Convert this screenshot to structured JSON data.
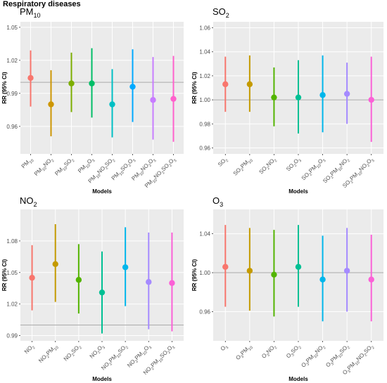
{
  "figure_title": "Respiratory diseases",
  "chart_data": [
    {
      "type": "errorbar",
      "title": "PM10",
      "title_sub": "10",
      "xlabel": "Models",
      "ylabel": "RR (95% CI)",
      "ylim": [
        0.935,
        1.055
      ],
      "yticks": [
        "0.96",
        "0.99",
        "1.02",
        "1.05"
      ],
      "reference_line": 1.0,
      "categories": [
        {
          "base": "PM",
          "sub": "10",
          "rest": ""
        },
        {
          "base": "PM",
          "sub": "10",
          "rest": "NO",
          "sub2": "2"
        },
        {
          "base": "PM",
          "sub": "10",
          "rest": "SO",
          "sub2": "2"
        },
        {
          "base": "PM",
          "sub": "10",
          "rest": "O",
          "sub2": "3"
        },
        {
          "base": "PM",
          "sub": "10",
          "rest": "NO",
          "sub2": "2",
          "rest2": "SO",
          "sub3": "2"
        },
        {
          "base": "PM",
          "sub": "10",
          "rest": "SO",
          "sub2": "2",
          "rest2": "O",
          "sub3": "3"
        },
        {
          "base": "PM",
          "sub": "10",
          "rest": "NO",
          "sub2": "2",
          "rest2": "O",
          "sub3": "3"
        },
        {
          "base": "PM",
          "sub": "10",
          "rest": "NO",
          "sub2": "2",
          "rest2": "SO",
          "sub3": "2",
          "rest3": "O",
          "sub4": "3"
        }
      ],
      "points": [
        {
          "rr": 1.004,
          "lower": 0.978,
          "upper": 1.029
        },
        {
          "rr": 0.98,
          "lower": 0.951,
          "upper": 1.011
        },
        {
          "rr": 0.999,
          "lower": 0.973,
          "upper": 1.027
        },
        {
          "rr": 0.999,
          "lower": 0.968,
          "upper": 1.031
        },
        {
          "rr": 0.98,
          "lower": 0.95,
          "upper": 1.012
        },
        {
          "rr": 0.996,
          "lower": 0.964,
          "upper": 1.03
        },
        {
          "rr": 0.984,
          "lower": 0.948,
          "upper": 1.023
        },
        {
          "rr": 0.985,
          "lower": 0.946,
          "upper": 1.024
        }
      ]
    },
    {
      "type": "errorbar",
      "title": "SO2",
      "xlabel": "Models",
      "ylabel": "RR (95% CI)",
      "ylim": [
        0.955,
        1.065
      ],
      "yticks": [
        "0.96",
        "0.98",
        "1.00",
        "1.02",
        "1.04",
        "1.06"
      ],
      "reference_line": 1.0,
      "categories": [
        {
          "base": "SO",
          "sub": "2",
          "rest": ""
        },
        {
          "base": "SO",
          "sub": "2",
          "rest": "PM",
          "sub2": "10"
        },
        {
          "base": "SO",
          "sub": "2",
          "rest": "NO",
          "sub2": "2"
        },
        {
          "base": "SO",
          "sub": "2",
          "rest": "O",
          "sub2": "3"
        },
        {
          "base": "SO",
          "sub": "2",
          "rest": "PM",
          "sub2": "10",
          "rest2": "O",
          "sub3": "3"
        },
        {
          "base": "SO",
          "sub": "2",
          "rest": "PM",
          "sub2": "10",
          "rest2": "NO",
          "sub3": "2"
        },
        {
          "base": "SO",
          "sub": "2",
          "rest": "PM",
          "sub2": "10",
          "rest2": "NO",
          "sub3": "2",
          "rest3": "O",
          "sub4": "3"
        }
      ],
      "points": [
        {
          "rr": 1.013,
          "lower": 0.99,
          "upper": 1.036
        },
        {
          "rr": 1.013,
          "lower": 0.99,
          "upper": 1.037
        },
        {
          "rr": 1.002,
          "lower": 0.978,
          "upper": 1.027
        },
        {
          "rr": 1.002,
          "lower": 0.972,
          "upper": 1.033
        },
        {
          "rr": 1.004,
          "lower": 0.973,
          "upper": 1.037
        },
        {
          "rr": 1.005,
          "lower": 0.98,
          "upper": 1.031
        },
        {
          "rr": 1.0,
          "lower": 0.965,
          "upper": 1.036
        }
      ]
    },
    {
      "type": "errorbar",
      "title": "NO2",
      "xlabel": "Models",
      "ylabel": "RR (95% CI)",
      "ylim": [
        0.985,
        1.11
      ],
      "yticks": [
        "0.99",
        "1.02",
        "1.05",
        "1.08"
      ],
      "reference_line": 1.0,
      "categories": [
        {
          "base": "NO",
          "sub": "2",
          "rest": ""
        },
        {
          "base": "NO",
          "sub": "2",
          "rest": "PM",
          "sub2": "10"
        },
        {
          "base": "NO",
          "sub": "2",
          "rest": "SO",
          "sub2": "2"
        },
        {
          "base": "NO",
          "sub": "2",
          "rest": "O",
          "sub2": "3"
        },
        {
          "base": "NO",
          "sub": "2",
          "rest": "PM",
          "sub2": "10",
          "rest2": "SO",
          "sub3": "2"
        },
        {
          "base": "NO",
          "sub": "2",
          "rest": "PM",
          "sub2": "10",
          "rest2": "O",
          "sub3": "3"
        },
        {
          "base": "NO",
          "sub": "2",
          "rest": "PM",
          "sub2": "10",
          "rest2": "SO",
          "sub3": "2",
          "rest3": "O",
          "sub4": "3"
        }
      ],
      "points": [
        {
          "rr": 1.045,
          "lower": 1.014,
          "upper": 1.076
        },
        {
          "rr": 1.058,
          "lower": 1.022,
          "upper": 1.096
        },
        {
          "rr": 1.043,
          "lower": 1.011,
          "upper": 1.077
        },
        {
          "rr": 1.031,
          "lower": 0.992,
          "upper": 1.07
        },
        {
          "rr": 1.055,
          "lower": 1.018,
          "upper": 1.093
        },
        {
          "rr": 1.041,
          "lower": 0.996,
          "upper": 1.088
        },
        {
          "rr": 1.04,
          "lower": 0.994,
          "upper": 1.088
        }
      ]
    },
    {
      "type": "errorbar",
      "title": "O3",
      "xlabel": "Models",
      "ylabel": "RR (95% CI)",
      "ylim": [
        0.93,
        1.065
      ],
      "yticks": [
        "0.96",
        "1.00",
        "1.04"
      ],
      "reference_line": 1.0,
      "categories": [
        {
          "base": "O",
          "sub": "3",
          "rest": ""
        },
        {
          "base": "O",
          "sub": "3",
          "rest": "PM",
          "sub2": "10"
        },
        {
          "base": "O",
          "sub": "3",
          "rest": "NO",
          "sub2": "2"
        },
        {
          "base": "O",
          "sub": "3",
          "rest": "SO",
          "sub2": "2"
        },
        {
          "base": "O",
          "sub": "3",
          "rest": "PM",
          "sub2": "10",
          "rest2": "NO",
          "sub3": "2"
        },
        {
          "base": "O",
          "sub": "3",
          "rest": "PM",
          "sub2": "10",
          "rest2": "SO",
          "sub3": "2"
        },
        {
          "base": "O",
          "sub": "3",
          "rest": "PM",
          "sub2": "10",
          "rest2": "NO",
          "sub3": "2",
          "rest3": "SO",
          "sub4": "2"
        }
      ],
      "points": [
        {
          "rr": 1.006,
          "lower": 0.965,
          "upper": 1.049
        },
        {
          "rr": 1.002,
          "lower": 0.961,
          "upper": 1.046
        },
        {
          "rr": 0.998,
          "lower": 0.955,
          "upper": 1.044
        },
        {
          "rr": 1.006,
          "lower": 0.965,
          "upper": 1.049
        },
        {
          "rr": 0.993,
          "lower": 0.95,
          "upper": 1.038
        },
        {
          "rr": 1.002,
          "lower": 0.96,
          "upper": 1.046
        },
        {
          "rr": 0.993,
          "lower": 0.95,
          "upper": 1.039
        }
      ]
    }
  ],
  "palette": {
    "eight": [
      "#F8766D",
      "#CD9600",
      "#7CAE00",
      "#00BE67",
      "#00BFC4",
      "#00A9FF",
      "#C77CFF",
      "#FF61CC"
    ],
    "seven": [
      "#F8766D",
      "#C49A00",
      "#53B400",
      "#00C094",
      "#00B6EB",
      "#A58AFF",
      "#FB61D7"
    ],
    "panel_bg": "#EBEBEB",
    "grid": "#FFFFFF",
    "ref_line": "#AAAAAA"
  }
}
